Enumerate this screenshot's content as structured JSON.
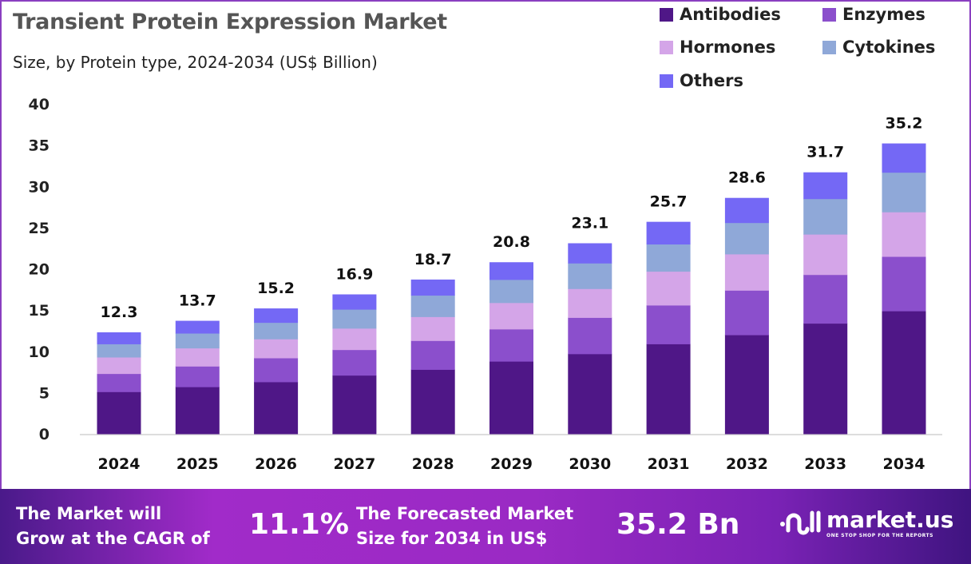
{
  "colors": {
    "Antibodies": "#4f1787",
    "Enzymes": "#8b4fcc",
    "Hormones": "#d4a5e8",
    "Cytokines": "#8fa8d8",
    "Others": "#7468f5"
  },
  "chart_data": {
    "type": "bar",
    "stacked": true,
    "title": "Transient Protein Expression Market",
    "subtitle": "Size, by Protein type, 2024-2034 (US$ Billion)",
    "xlabel": "",
    "ylabel": "",
    "ylim": [
      0,
      40
    ],
    "yticks": [
      0,
      5,
      10,
      15,
      20,
      25,
      30,
      35,
      40
    ],
    "grid": false,
    "legend_position": "top-right",
    "categories": [
      "2024",
      "2025",
      "2026",
      "2027",
      "2028",
      "2029",
      "2030",
      "2031",
      "2032",
      "2033",
      "2034"
    ],
    "totals": [
      12.3,
      13.7,
      15.2,
      16.9,
      18.7,
      20.8,
      23.1,
      25.7,
      28.6,
      31.7,
      35.2
    ],
    "series": [
      {
        "name": "Antibodies",
        "values": [
          5.1,
          5.7,
          6.3,
          7.1,
          7.8,
          8.8,
          9.7,
          10.9,
          12.0,
          13.4,
          14.9
        ]
      },
      {
        "name": "Enzymes",
        "values": [
          2.2,
          2.5,
          2.9,
          3.1,
          3.5,
          3.9,
          4.4,
          4.7,
          5.4,
          5.9,
          6.6
        ]
      },
      {
        "name": "Hormones",
        "values": [
          2.0,
          2.2,
          2.3,
          2.6,
          2.9,
          3.2,
          3.5,
          4.1,
          4.4,
          4.9,
          5.4
        ]
      },
      {
        "name": "Cytokines",
        "values": [
          1.6,
          1.8,
          2.0,
          2.3,
          2.6,
          2.8,
          3.1,
          3.3,
          3.8,
          4.3,
          4.8
        ]
      },
      {
        "name": "Others",
        "values": [
          1.4,
          1.5,
          1.7,
          1.8,
          1.9,
          2.1,
          2.4,
          2.7,
          3.0,
          3.2,
          3.5
        ]
      }
    ]
  },
  "footer": {
    "cagr_text_line1": "The Market will",
    "cagr_text_line2": "Grow at the CAGR of",
    "cagr_value": "11.1%",
    "forecast_text_line1": "The Forecasted Market",
    "forecast_text_line2": "Size for 2034 in US$",
    "forecast_value": "35.2 Bn",
    "logo_text": "market.us",
    "logo_tagline": "ONE STOP SHOP FOR THE REPORTS"
  }
}
